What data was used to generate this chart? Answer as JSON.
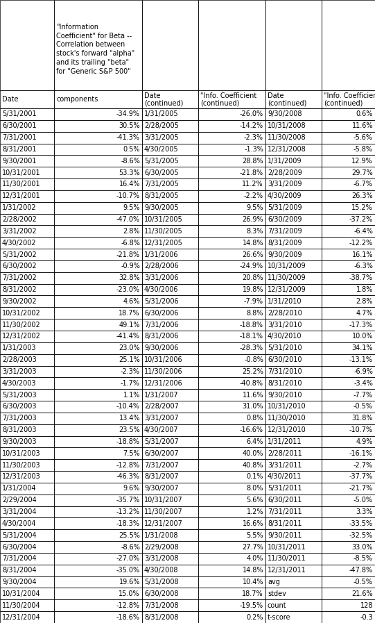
{
  "col1_dates": [
    "5/31/2001",
    "6/30/2001",
    "7/31/2001",
    "8/31/2001",
    "9/30/2001",
    "10/31/2001",
    "11/30/2001",
    "12/31/2001",
    "1/31/2002",
    "2/28/2002",
    "3/31/2002",
    "4/30/2002",
    "5/31/2002",
    "6/30/2002",
    "7/31/2002",
    "8/31/2002",
    "9/30/2002",
    "10/31/2002",
    "11/30/2002",
    "12/31/2002",
    "1/31/2003",
    "2/28/2003",
    "3/31/2003",
    "4/30/2003",
    "5/31/2003",
    "6/30/2003",
    "7/31/2003",
    "8/31/2003",
    "9/30/2003",
    "10/31/2003",
    "11/30/2003",
    "12/31/2003",
    "1/31/2004",
    "2/29/2004",
    "3/31/2004",
    "4/30/2004",
    "5/31/2004",
    "6/30/2004",
    "7/31/2004",
    "8/31/2004",
    "9/30/2004",
    "10/31/2004",
    "11/30/2004",
    "12/31/2004"
  ],
  "col1_vals": [
    "-34.9%",
    "30.5%",
    "-41.3%",
    "0.5%",
    "-8.6%",
    "53.3%",
    "16.4%",
    "-10.7%",
    "9.5%",
    "-47.0%",
    "2.8%",
    "-6.8%",
    "-21.8%",
    "-0.9%",
    "32.8%",
    "-23.0%",
    "4.6%",
    "18.7%",
    "49.1%",
    "-41.4%",
    "23.0%",
    "25.1%",
    "-2.3%",
    "-1.7%",
    "1.1%",
    "-10.4%",
    "13.4%",
    "23.5%",
    "-18.8%",
    "7.5%",
    "-12.8%",
    "-46.3%",
    "9.6%",
    "-35.7%",
    "-13.2%",
    "-18.3%",
    "25.5%",
    "-8.6%",
    "-27.0%",
    "-35.0%",
    "19.6%",
    "15.0%",
    "-12.8%",
    "-18.6%"
  ],
  "col2_dates": [
    "1/31/2005",
    "2/28/2005",
    "3/31/2005",
    "4/30/2005",
    "5/31/2005",
    "6/30/2005",
    "7/31/2005",
    "8/31/2005",
    "9/30/2005",
    "10/31/2005",
    "11/30/2005",
    "12/31/2005",
    "1/31/2006",
    "2/28/2006",
    "3/31/2006",
    "4/30/2006",
    "5/31/2006",
    "6/30/2006",
    "7/31/2006",
    "8/31/2006",
    "9/30/2006",
    "10/31/2006",
    "11/30/2006",
    "12/31/2006",
    "1/31/2007",
    "2/28/2007",
    "3/31/2007",
    "4/30/2007",
    "5/31/2007",
    "6/30/2007",
    "7/31/2007",
    "8/31/2007",
    "9/30/2007",
    "10/31/2007",
    "11/30/2007",
    "12/31/2007",
    "1/31/2008",
    "2/29/2008",
    "3/31/2008",
    "4/30/2008",
    "5/31/2008",
    "6/30/2008",
    "7/31/2008",
    "8/31/2008"
  ],
  "col2_vals": [
    "-26.0%",
    "-14.2%",
    "-2.3%",
    "-1.3%",
    "28.8%",
    "-21.8%",
    "11.2%",
    "-2.2%",
    "9.5%",
    "26.9%",
    "8.3%",
    "14.8%",
    "26.6%",
    "-24.9%",
    "20.8%",
    "19.8%",
    "-7.9%",
    "8.8%",
    "-18.8%",
    "-18.1%",
    "-28.3%",
    "-0.8%",
    "25.2%",
    "-40.8%",
    "11.6%",
    "31.0%",
    "0.8%",
    "-16.6%",
    "6.4%",
    "40.0%",
    "40.8%",
    "0.1%",
    "8.0%",
    "5.6%",
    "1.2%",
    "16.6%",
    "5.5%",
    "27.7%",
    "4.0%",
    "14.8%",
    "10.4%",
    "18.7%",
    "-19.5%",
    "0.2%"
  ],
  "col3_dates": [
    "9/30/2008",
    "10/31/2008",
    "11/30/2008",
    "12/31/2008",
    "1/31/2009",
    "2/28/2009",
    "3/31/2009",
    "4/30/2009",
    "5/31/2009",
    "6/30/2009",
    "7/31/2009",
    "8/31/2009",
    "9/30/2009",
    "10/31/2009",
    "11/30/2009",
    "12/31/2009",
    "1/31/2010",
    "2/28/2010",
    "3/31/2010",
    "4/30/2010",
    "5/31/2010",
    "6/30/2010",
    "7/31/2010",
    "8/31/2010",
    "9/30/2010",
    "10/31/2010",
    "11/30/2010",
    "12/31/2010",
    "1/31/2011",
    "2/28/2011",
    "3/31/2011",
    "4/30/2011",
    "5/31/2011",
    "6/30/2011",
    "7/31/2011",
    "8/31/2011",
    "9/30/2011",
    "10/31/2011",
    "11/30/2011",
    "12/31/2011",
    "avg",
    "stdev",
    "count",
    "t-score"
  ],
  "col3_vals": [
    "0.6%",
    "11.6%",
    "-5.6%",
    "-5.8%",
    "12.9%",
    "29.7%",
    "-6.7%",
    "26.3%",
    "15.2%",
    "-37.2%",
    "-6.4%",
    "-12.2%",
    "16.1%",
    "-6.3%",
    "-38.7%",
    "1.8%",
    "2.8%",
    "4.7%",
    "-17.3%",
    "10.0%",
    "34.1%",
    "-13.1%",
    "-6.9%",
    "-3.4%",
    "-7.7%",
    "-0.5%",
    "31.8%",
    "-10.7%",
    "4.9%",
    "-16.1%",
    "-2.7%",
    "-37.7%",
    "-21.7%",
    "-5.0%",
    "3.3%",
    "-33.5%",
    "-32.5%",
    "33.0%",
    "-8.5%",
    "-47.8%",
    "-0.5%",
    "21.6%",
    "128",
    "-0.3"
  ],
  "font_size": 7.0,
  "bg_color": "#ffffff",
  "grid_color": "#000000",
  "text_color": "#000000"
}
